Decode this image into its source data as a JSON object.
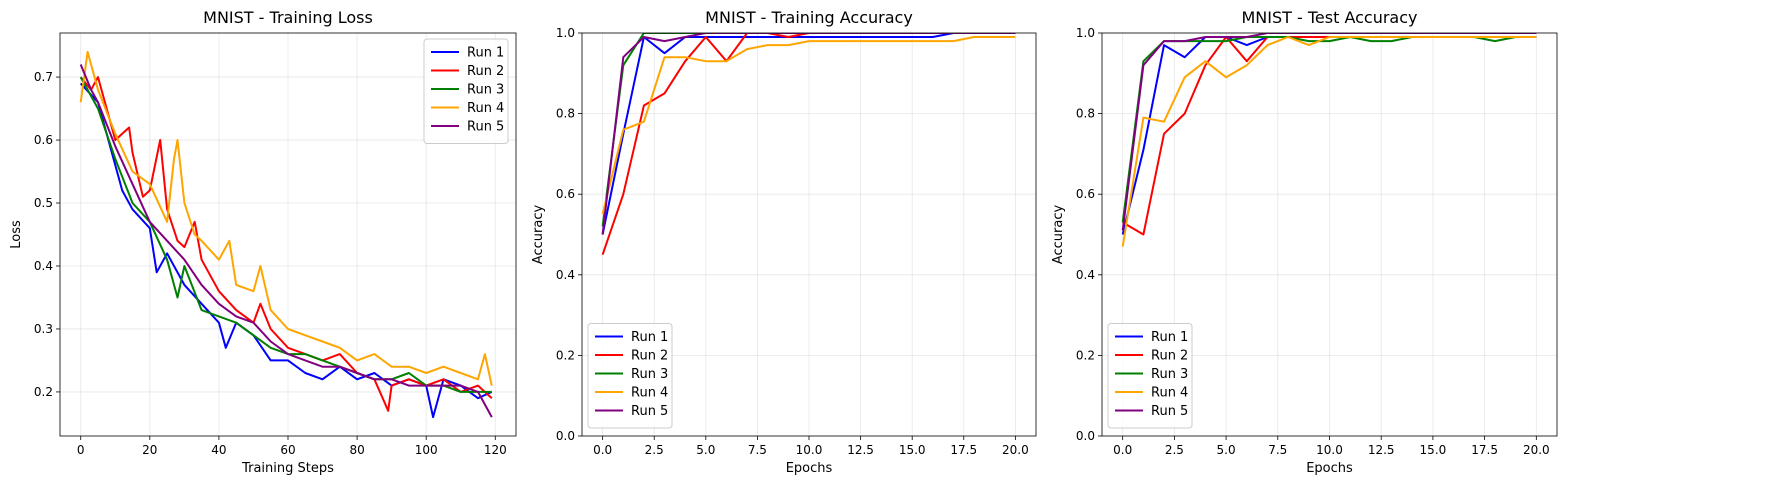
{
  "chart_data": [
    {
      "type": "line",
      "title": "MNIST - Training Loss",
      "xlabel": "Training Steps",
      "ylabel": "Loss",
      "xlim": [
        -6,
        126
      ],
      "ylim": [
        0.13,
        0.77
      ],
      "xticks": [
        0,
        20,
        40,
        60,
        80,
        100,
        120
      ],
      "yticks": [
        0.2,
        0.3,
        0.4,
        0.5,
        0.6,
        0.7
      ],
      "grid": true,
      "legend": "top-right",
      "series": [
        {
          "name": "Run 1",
          "color": "#0000ff",
          "x": [
            0,
            5,
            10,
            12,
            15,
            20,
            22,
            25,
            30,
            35,
            40,
            42,
            45,
            50,
            55,
            60,
            65,
            70,
            75,
            80,
            85,
            90,
            95,
            100,
            102,
            105,
            110,
            115,
            119
          ],
          "y": [
            0.69,
            0.66,
            0.56,
            0.52,
            0.49,
            0.46,
            0.39,
            0.42,
            0.37,
            0.34,
            0.31,
            0.27,
            0.31,
            0.29,
            0.25,
            0.25,
            0.23,
            0.22,
            0.24,
            0.22,
            0.23,
            0.21,
            0.22,
            0.21,
            0.16,
            0.22,
            0.21,
            0.19,
            0.2
          ]
        },
        {
          "name": "Run 2",
          "color": "#ff0000",
          "x": [
            0,
            3,
            5,
            8,
            10,
            14,
            15,
            18,
            20,
            23,
            25,
            28,
            30,
            33,
            35,
            40,
            45,
            50,
            52,
            55,
            60,
            65,
            70,
            75,
            80,
            85,
            89,
            90,
            95,
            100,
            105,
            110,
            115,
            119
          ],
          "y": [
            0.7,
            0.68,
            0.7,
            0.64,
            0.6,
            0.62,
            0.58,
            0.51,
            0.52,
            0.6,
            0.49,
            0.44,
            0.43,
            0.47,
            0.41,
            0.36,
            0.33,
            0.31,
            0.34,
            0.3,
            0.27,
            0.26,
            0.25,
            0.26,
            0.23,
            0.22,
            0.17,
            0.21,
            0.22,
            0.21,
            0.22,
            0.2,
            0.21,
            0.19
          ]
        },
        {
          "name": "Run 3",
          "color": "#008000",
          "x": [
            0,
            5,
            10,
            15,
            20,
            25,
            28,
            30,
            35,
            40,
            45,
            50,
            55,
            60,
            65,
            70,
            75,
            80,
            85,
            90,
            95,
            100,
            105,
            110,
            115,
            119
          ],
          "y": [
            0.7,
            0.65,
            0.57,
            0.5,
            0.47,
            0.41,
            0.35,
            0.4,
            0.33,
            0.32,
            0.31,
            0.29,
            0.27,
            0.26,
            0.26,
            0.25,
            0.24,
            0.23,
            0.22,
            0.22,
            0.23,
            0.21,
            0.21,
            0.2,
            0.2,
            0.2
          ]
        },
        {
          "name": "Run 4",
          "color": "#ffa500",
          "x": [
            0,
            2,
            5,
            10,
            15,
            20,
            25,
            27,
            28,
            30,
            33,
            35,
            40,
            43,
            45,
            50,
            52,
            55,
            60,
            65,
            70,
            75,
            80,
            85,
            90,
            95,
            100,
            105,
            110,
            115,
            117,
            119
          ],
          "y": [
            0.66,
            0.74,
            0.68,
            0.61,
            0.55,
            0.53,
            0.47,
            0.57,
            0.6,
            0.5,
            0.45,
            0.44,
            0.41,
            0.44,
            0.37,
            0.36,
            0.4,
            0.33,
            0.3,
            0.29,
            0.28,
            0.27,
            0.25,
            0.26,
            0.24,
            0.24,
            0.23,
            0.24,
            0.23,
            0.22,
            0.26,
            0.21
          ]
        },
        {
          "name": "Run 5",
          "color": "#800080",
          "x": [
            0,
            3,
            5,
            10,
            15,
            20,
            25,
            30,
            35,
            40,
            45,
            50,
            55,
            60,
            65,
            70,
            75,
            80,
            85,
            90,
            95,
            100,
            105,
            110,
            115,
            119
          ],
          "y": [
            0.72,
            0.68,
            0.66,
            0.59,
            0.53,
            0.47,
            0.44,
            0.41,
            0.37,
            0.34,
            0.32,
            0.31,
            0.28,
            0.26,
            0.25,
            0.24,
            0.24,
            0.23,
            0.22,
            0.22,
            0.21,
            0.21,
            0.21,
            0.21,
            0.2,
            0.16
          ]
        }
      ]
    },
    {
      "type": "line",
      "title": "MNIST - Training Accuracy",
      "xlabel": "Epochs",
      "ylabel": "Accuracy",
      "xlim": [
        -1,
        21
      ],
      "ylim": [
        0,
        1
      ],
      "xticks": [
        0.0,
        2.5,
        5.0,
        7.5,
        10.0,
        12.5,
        15.0,
        17.5,
        20.0
      ],
      "yticks": [
        0.0,
        0.2,
        0.4,
        0.6,
        0.8,
        1.0
      ],
      "grid": true,
      "legend": "bottom-left",
      "series": [
        {
          "name": "Run 1",
          "color": "#0000ff",
          "x": [
            0,
            1,
            2,
            3,
            4,
            5,
            6,
            7,
            8,
            9,
            10,
            11,
            12,
            13,
            14,
            15,
            16,
            17,
            18,
            19,
            20
          ],
          "y": [
            0.5,
            0.75,
            0.99,
            0.95,
            0.99,
            0.99,
            0.99,
            0.99,
            0.99,
            0.99,
            0.99,
            0.99,
            0.99,
            0.99,
            0.99,
            0.99,
            0.99,
            1.0,
            1.0,
            1.0,
            1.0
          ]
        },
        {
          "name": "Run 2",
          "color": "#ff0000",
          "x": [
            0,
            1,
            2,
            3,
            4,
            5,
            6,
            7,
            8,
            9,
            10,
            11,
            12,
            13,
            14,
            15,
            16,
            17,
            18,
            19,
            20
          ],
          "y": [
            0.45,
            0.6,
            0.82,
            0.85,
            0.93,
            0.99,
            0.93,
            1.0,
            1.0,
            0.99,
            1.0,
            1.0,
            1.0,
            1.0,
            1.0,
            1.0,
            1.0,
            1.0,
            1.0,
            1.0,
            1.0
          ]
        },
        {
          "name": "Run 3",
          "color": "#008000",
          "x": [
            0,
            1,
            2,
            3,
            4,
            5,
            6,
            7,
            8,
            9,
            10,
            11,
            12,
            13,
            14,
            15,
            16,
            17,
            18,
            19,
            20
          ],
          "y": [
            0.52,
            0.92,
            1.0,
            1.0,
            1.0,
            1.0,
            1.0,
            1.0,
            1.0,
            1.0,
            1.0,
            1.0,
            1.0,
            1.0,
            1.0,
            1.0,
            1.0,
            1.0,
            1.0,
            1.0,
            1.0
          ]
        },
        {
          "name": "Run 4",
          "color": "#ffa500",
          "x": [
            0,
            1,
            2,
            3,
            4,
            5,
            6,
            7,
            8,
            9,
            10,
            11,
            12,
            13,
            14,
            15,
            16,
            17,
            18,
            19,
            20
          ],
          "y": [
            0.55,
            0.76,
            0.78,
            0.94,
            0.94,
            0.93,
            0.93,
            0.96,
            0.97,
            0.97,
            0.98,
            0.98,
            0.98,
            0.98,
            0.98,
            0.98,
            0.98,
            0.98,
            0.99,
            0.99,
            0.99
          ]
        },
        {
          "name": "Run 5",
          "color": "#800080",
          "x": [
            0,
            1,
            2,
            3,
            4,
            5,
            6,
            7,
            8,
            9,
            10,
            11,
            12,
            13,
            14,
            15,
            16,
            17,
            18,
            19,
            20
          ],
          "y": [
            0.5,
            0.94,
            0.99,
            0.98,
            0.99,
            1.0,
            1.0,
            1.0,
            1.0,
            1.0,
            1.0,
            1.0,
            1.0,
            1.0,
            1.0,
            1.0,
            1.0,
            1.0,
            1.0,
            1.0,
            1.0
          ]
        }
      ]
    },
    {
      "type": "line",
      "title": "MNIST - Test Accuracy",
      "xlabel": "Epochs",
      "ylabel": "Accuracy",
      "xlim": [
        -1,
        21
      ],
      "ylim": [
        0,
        1
      ],
      "xticks": [
        0.0,
        2.5,
        5.0,
        7.5,
        10.0,
        12.5,
        15.0,
        17.5,
        20.0
      ],
      "yticks": [
        0.0,
        0.2,
        0.4,
        0.6,
        0.8,
        1.0
      ],
      "grid": true,
      "legend": "bottom-left",
      "series": [
        {
          "name": "Run 1",
          "color": "#0000ff",
          "x": [
            0,
            1,
            2,
            3,
            4,
            5,
            6,
            7,
            8,
            9,
            10,
            11,
            12,
            13,
            14,
            15,
            16,
            17,
            18,
            19,
            20
          ],
          "y": [
            0.5,
            0.71,
            0.97,
            0.94,
            0.99,
            0.99,
            0.97,
            0.99,
            0.99,
            0.99,
            0.99,
            0.99,
            0.99,
            0.99,
            0.99,
            0.99,
            0.99,
            0.99,
            0.99,
            0.99,
            0.99
          ]
        },
        {
          "name": "Run 2",
          "color": "#ff0000",
          "x": [
            0,
            1,
            2,
            3,
            4,
            5,
            6,
            7,
            8,
            9,
            10,
            11,
            12,
            13,
            14,
            15,
            16,
            17,
            18,
            19,
            20
          ],
          "y": [
            0.53,
            0.5,
            0.75,
            0.8,
            0.92,
            0.99,
            0.93,
            0.99,
            0.99,
            0.99,
            0.99,
            0.99,
            0.99,
            0.99,
            0.99,
            0.99,
            0.99,
            0.99,
            0.99,
            0.99,
            0.99
          ]
        },
        {
          "name": "Run 3",
          "color": "#008000",
          "x": [
            0,
            1,
            2,
            3,
            4,
            5,
            6,
            7,
            8,
            9,
            10,
            11,
            12,
            13,
            14,
            15,
            16,
            17,
            18,
            19,
            20
          ],
          "y": [
            0.53,
            0.93,
            0.98,
            0.98,
            0.98,
            0.98,
            0.99,
            0.99,
            0.99,
            0.98,
            0.98,
            0.99,
            0.98,
            0.98,
            0.99,
            0.99,
            0.99,
            0.99,
            0.98,
            0.99,
            0.99
          ]
        },
        {
          "name": "Run 4",
          "color": "#ffa500",
          "x": [
            0,
            1,
            2,
            3,
            4,
            5,
            6,
            7,
            8,
            9,
            10,
            11,
            12,
            13,
            14,
            15,
            16,
            17,
            18,
            19,
            20
          ],
          "y": [
            0.47,
            0.79,
            0.78,
            0.89,
            0.93,
            0.89,
            0.92,
            0.97,
            0.99,
            0.97,
            0.99,
            0.99,
            0.99,
            0.99,
            0.99,
            0.99,
            0.99,
            0.99,
            0.99,
            0.99,
            0.99
          ]
        },
        {
          "name": "Run 5",
          "color": "#800080",
          "x": [
            0,
            1,
            2,
            3,
            4,
            5,
            6,
            7,
            8,
            9,
            10,
            11,
            12,
            13,
            14,
            15,
            16,
            17,
            18,
            19,
            20
          ],
          "y": [
            0.51,
            0.92,
            0.98,
            0.98,
            0.99,
            0.99,
            0.99,
            1.0,
            1.0,
            1.0,
            1.0,
            1.0,
            1.0,
            1.0,
            1.0,
            1.0,
            1.0,
            1.0,
            1.0,
            1.0,
            1.0
          ]
        }
      ]
    }
  ]
}
